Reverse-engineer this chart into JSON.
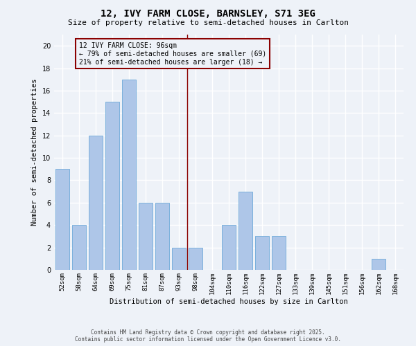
{
  "title1": "12, IVY FARM CLOSE, BARNSLEY, S71 3EG",
  "title2": "Size of property relative to semi-detached houses in Carlton",
  "xlabel": "Distribution of semi-detached houses by size in Carlton",
  "ylabel": "Number of semi-detached properties",
  "categories": [
    "52sqm",
    "58sqm",
    "64sqm",
    "69sqm",
    "75sqm",
    "81sqm",
    "87sqm",
    "93sqm",
    "98sqm",
    "104sqm",
    "110sqm",
    "116sqm",
    "122sqm",
    "127sqm",
    "133sqm",
    "139sqm",
    "145sqm",
    "151sqm",
    "156sqm",
    "162sqm",
    "168sqm"
  ],
  "values": [
    9,
    4,
    12,
    15,
    17,
    6,
    6,
    2,
    2,
    0,
    4,
    7,
    3,
    3,
    0,
    0,
    0,
    0,
    0,
    1,
    0
  ],
  "bar_color": "#aec6e8",
  "bar_edgecolor": "#5a9fd4",
  "vline_index": 8,
  "vline_color": "#8b0000",
  "annotation_title": "12 IVY FARM CLOSE: 96sqm",
  "annotation_line1": "← 79% of semi-detached houses are smaller (69)",
  "annotation_line2": "21% of semi-detached houses are larger (18) →",
  "annotation_box_color": "#8b0000",
  "ylim": [
    0,
    21
  ],
  "yticks": [
    0,
    2,
    4,
    6,
    8,
    10,
    12,
    14,
    16,
    18,
    20
  ],
  "footer1": "Contains HM Land Registry data © Crown copyright and database right 2025.",
  "footer2": "Contains public sector information licensed under the Open Government Licence v3.0.",
  "bg_color": "#eef2f8",
  "grid_color": "#ffffff"
}
